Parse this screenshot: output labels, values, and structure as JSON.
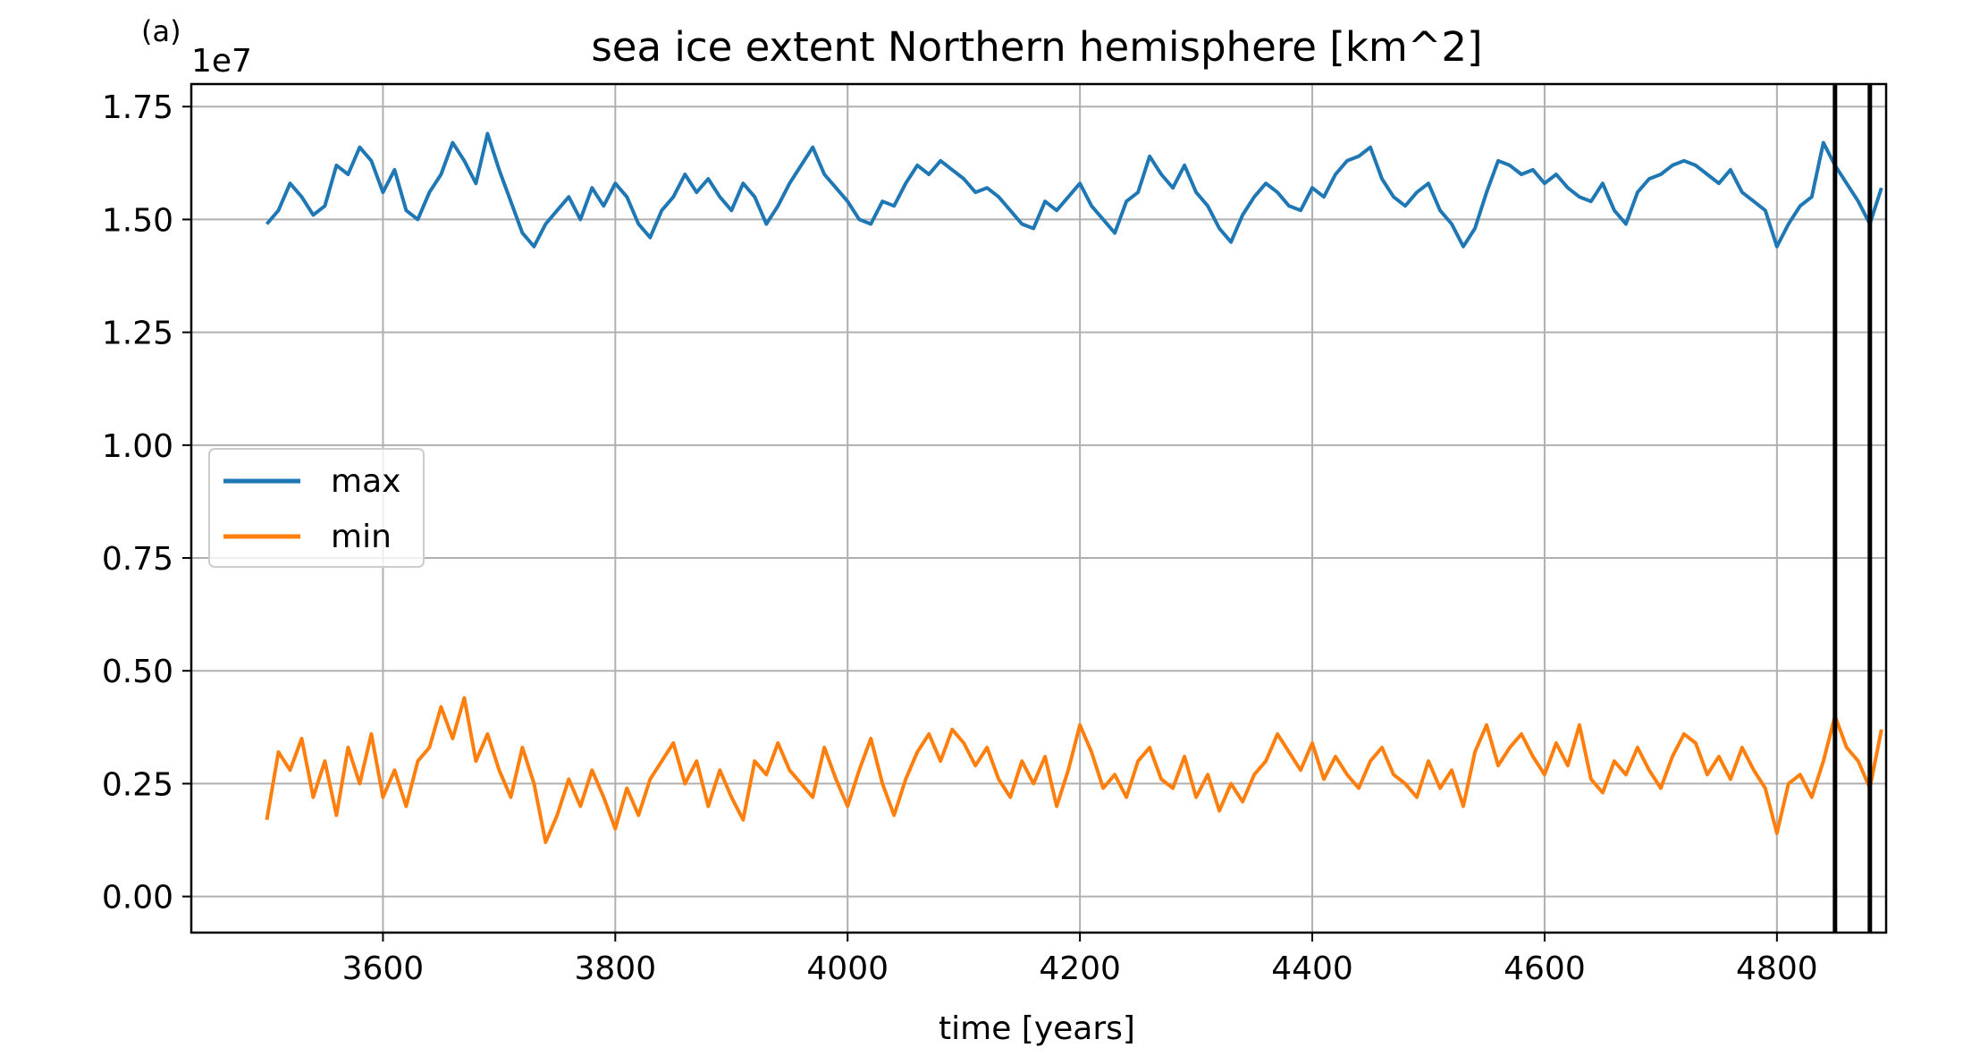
{
  "chart_data": {
    "type": "line",
    "panel_label": "(a)",
    "title": "sea ice extent Northern hemisphere [km^2]",
    "xlabel": "time [years]",
    "ylabel": "",
    "y_offset_label": "1e7",
    "xlim": [
      3435,
      4894
    ],
    "ylim": [
      -0.08,
      1.8
    ],
    "y_scale_note": "values in units of 1e7 km^2",
    "x_ticks": [
      3600,
      3800,
      4000,
      4200,
      4400,
      4600,
      4800
    ],
    "x_tick_labels": [
      "3600",
      "3800",
      "4000",
      "4200",
      "4400",
      "4600",
      "4800"
    ],
    "y_ticks": [
      0.0,
      0.25,
      0.5,
      0.75,
      1.0,
      1.25,
      1.5,
      1.75
    ],
    "y_tick_labels": [
      "0.00",
      "0.25",
      "0.50",
      "0.75",
      "1.00",
      "1.25",
      "1.50",
      "1.75"
    ],
    "grid": true,
    "legend_position": "center-left",
    "vertical_lines": [
      4850,
      4880
    ],
    "vertical_line_color": "#000000",
    "series": [
      {
        "name": "max",
        "color": "#1f77b4",
        "x": [
          3500,
          3510,
          3520,
          3530,
          3540,
          3550,
          3560,
          3570,
          3580,
          3590,
          3600,
          3610,
          3620,
          3630,
          3640,
          3650,
          3660,
          3670,
          3680,
          3690,
          3700,
          3710,
          3720,
          3730,
          3740,
          3750,
          3760,
          3770,
          3780,
          3790,
          3800,
          3810,
          3820,
          3830,
          3840,
          3850,
          3860,
          3870,
          3880,
          3890,
          3900,
          3910,
          3920,
          3930,
          3940,
          3950,
          3960,
          3970,
          3980,
          3990,
          4000,
          4010,
          4020,
          4030,
          4040,
          4050,
          4060,
          4070,
          4080,
          4090,
          4100,
          4110,
          4120,
          4130,
          4140,
          4150,
          4160,
          4170,
          4180,
          4190,
          4200,
          4210,
          4220,
          4230,
          4240,
          4250,
          4260,
          4270,
          4280,
          4290,
          4300,
          4310,
          4320,
          4330,
          4340,
          4350,
          4360,
          4370,
          4380,
          4390,
          4400,
          4410,
          4420,
          4430,
          4440,
          4450,
          4460,
          4470,
          4480,
          4490,
          4500,
          4510,
          4520,
          4530,
          4540,
          4550,
          4560,
          4570,
          4580,
          4590,
          4600,
          4610,
          4620,
          4630,
          4640,
          4650,
          4660,
          4670,
          4680,
          4690,
          4700,
          4710,
          4720,
          4730,
          4740,
          4750,
          4760,
          4770,
          4780,
          4790,
          4800,
          4810,
          4820,
          4830,
          4840,
          4850,
          4860,
          4870,
          4880,
          4890
        ],
        "y": [
          1.49,
          1.52,
          1.58,
          1.55,
          1.51,
          1.53,
          1.62,
          1.6,
          1.66,
          1.63,
          1.56,
          1.61,
          1.52,
          1.5,
          1.56,
          1.6,
          1.67,
          1.63,
          1.58,
          1.69,
          1.61,
          1.54,
          1.47,
          1.44,
          1.49,
          1.52,
          1.55,
          1.5,
          1.57,
          1.53,
          1.58,
          1.55,
          1.49,
          1.46,
          1.52,
          1.55,
          1.6,
          1.56,
          1.59,
          1.55,
          1.52,
          1.58,
          1.55,
          1.49,
          1.53,
          1.58,
          1.62,
          1.66,
          1.6,
          1.57,
          1.54,
          1.5,
          1.49,
          1.54,
          1.53,
          1.58,
          1.62,
          1.6,
          1.63,
          1.61,
          1.59,
          1.56,
          1.57,
          1.55,
          1.52,
          1.49,
          1.48,
          1.54,
          1.52,
          1.55,
          1.58,
          1.53,
          1.5,
          1.47,
          1.54,
          1.56,
          1.64,
          1.6,
          1.57,
          1.62,
          1.56,
          1.53,
          1.48,
          1.45,
          1.51,
          1.55,
          1.58,
          1.56,
          1.53,
          1.52,
          1.57,
          1.55,
          1.6,
          1.63,
          1.64,
          1.66,
          1.59,
          1.55,
          1.53,
          1.56,
          1.58,
          1.52,
          1.49,
          1.44,
          1.48,
          1.56,
          1.63,
          1.62,
          1.6,
          1.61,
          1.58,
          1.6,
          1.57,
          1.55,
          1.54,
          1.58,
          1.52,
          1.49,
          1.56,
          1.59,
          1.6,
          1.62,
          1.63,
          1.62,
          1.6,
          1.58,
          1.61,
          1.56,
          1.54,
          1.52,
          1.44,
          1.49,
          1.53,
          1.55,
          1.67,
          1.62,
          1.58,
          1.54,
          1.49,
          1.57
        ]
      },
      {
        "name": "min",
        "color": "#ff7f0e",
        "x": [
          3500,
          3510,
          3520,
          3530,
          3540,
          3550,
          3560,
          3570,
          3580,
          3590,
          3600,
          3610,
          3620,
          3630,
          3640,
          3650,
          3660,
          3670,
          3680,
          3690,
          3700,
          3710,
          3720,
          3730,
          3740,
          3750,
          3760,
          3770,
          3780,
          3790,
          3800,
          3810,
          3820,
          3830,
          3840,
          3850,
          3860,
          3870,
          3880,
          3890,
          3900,
          3910,
          3920,
          3930,
          3940,
          3950,
          3960,
          3970,
          3980,
          3990,
          4000,
          4010,
          4020,
          4030,
          4040,
          4050,
          4060,
          4070,
          4080,
          4090,
          4100,
          4110,
          4120,
          4130,
          4140,
          4150,
          4160,
          4170,
          4180,
          4190,
          4200,
          4210,
          4220,
          4230,
          4240,
          4250,
          4260,
          4270,
          4280,
          4290,
          4300,
          4310,
          4320,
          4330,
          4340,
          4350,
          4360,
          4370,
          4380,
          4390,
          4400,
          4410,
          4420,
          4430,
          4440,
          4450,
          4460,
          4470,
          4480,
          4490,
          4500,
          4510,
          4520,
          4530,
          4540,
          4550,
          4560,
          4570,
          4580,
          4590,
          4600,
          4610,
          4620,
          4630,
          4640,
          4650,
          4660,
          4670,
          4680,
          4690,
          4700,
          4710,
          4720,
          4730,
          4740,
          4750,
          4760,
          4770,
          4780,
          4790,
          4800,
          4810,
          4820,
          4830,
          4840,
          4850,
          4860,
          4870,
          4880,
          4890
        ],
        "y": [
          0.17,
          0.32,
          0.28,
          0.35,
          0.22,
          0.3,
          0.18,
          0.33,
          0.25,
          0.36,
          0.22,
          0.28,
          0.2,
          0.3,
          0.33,
          0.42,
          0.35,
          0.44,
          0.3,
          0.36,
          0.28,
          0.22,
          0.33,
          0.25,
          0.12,
          0.18,
          0.26,
          0.2,
          0.28,
          0.22,
          0.15,
          0.24,
          0.18,
          0.26,
          0.3,
          0.34,
          0.25,
          0.3,
          0.2,
          0.28,
          0.22,
          0.17,
          0.3,
          0.27,
          0.34,
          0.28,
          0.25,
          0.22,
          0.33,
          0.26,
          0.2,
          0.28,
          0.35,
          0.25,
          0.18,
          0.26,
          0.32,
          0.36,
          0.3,
          0.37,
          0.34,
          0.29,
          0.33,
          0.26,
          0.22,
          0.3,
          0.25,
          0.31,
          0.2,
          0.28,
          0.38,
          0.32,
          0.24,
          0.27,
          0.22,
          0.3,
          0.33,
          0.26,
          0.24,
          0.31,
          0.22,
          0.27,
          0.19,
          0.25,
          0.21,
          0.27,
          0.3,
          0.36,
          0.32,
          0.28,
          0.34,
          0.26,
          0.31,
          0.27,
          0.24,
          0.3,
          0.33,
          0.27,
          0.25,
          0.22,
          0.3,
          0.24,
          0.28,
          0.2,
          0.32,
          0.38,
          0.29,
          0.33,
          0.36,
          0.31,
          0.27,
          0.34,
          0.29,
          0.38,
          0.26,
          0.23,
          0.3,
          0.27,
          0.33,
          0.28,
          0.24,
          0.31,
          0.36,
          0.34,
          0.27,
          0.31,
          0.26,
          0.33,
          0.28,
          0.24,
          0.14,
          0.25,
          0.27,
          0.22,
          0.3,
          0.4,
          0.33,
          0.3,
          0.24,
          0.37
        ]
      }
    ]
  }
}
